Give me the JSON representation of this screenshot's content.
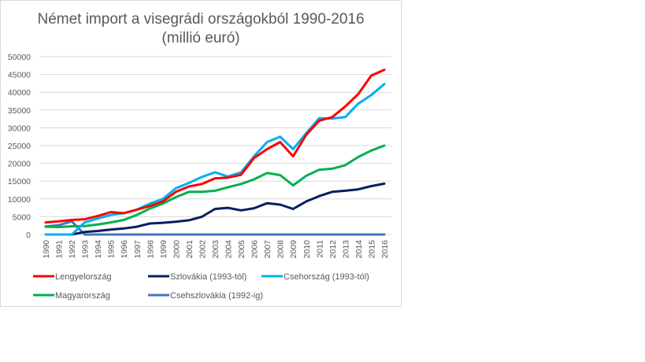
{
  "chart_data": {
    "type": "line",
    "title": "Német import a visegrádi országokból 1990-2016",
    "subtitle": "(millió euró)",
    "xlabel": "",
    "ylabel": "",
    "ylim": [
      0,
      50000
    ],
    "yticks": [
      "0",
      "5000",
      "10000",
      "15000",
      "20000",
      "25000",
      "30000",
      "35000",
      "40000",
      "45000",
      "50000"
    ],
    "ytick_values": [
      0,
      5000,
      10000,
      15000,
      20000,
      25000,
      30000,
      35000,
      40000,
      45000,
      50000
    ],
    "grid": true,
    "legend_position": "bottom",
    "x": [
      "1990",
      "1991",
      "1992",
      "1993",
      "1994",
      "1995",
      "1996",
      "1997",
      "1998",
      "1999",
      "2000",
      "2001",
      "2002",
      "2003",
      "2004",
      "2005",
      "2006",
      "2007",
      "2008",
      "2009",
      "2010",
      "2011",
      "2012",
      "2013",
      "2014",
      "2015",
      "2016"
    ],
    "series": [
      {
        "name": "Lengyelország",
        "color": "#ff0000",
        "values": [
          3400,
          3700,
          4100,
          4300,
          5200,
          6300,
          6000,
          7000,
          8000,
          9300,
          12000,
          13500,
          14200,
          15800,
          16000,
          16800,
          21500,
          24000,
          26000,
          22000,
          28000,
          32000,
          33000,
          36000,
          39500,
          44700,
          46300
        ]
      },
      {
        "name": "Szlovákia (1993-tól)",
        "color": "#002060",
        "values": [
          null,
          null,
          0,
          700,
          1000,
          1400,
          1700,
          2200,
          3100,
          3300,
          3600,
          4000,
          5000,
          7200,
          7500,
          6800,
          7400,
          8800,
          8400,
          7200,
          9300,
          10800,
          12000,
          12300,
          12700,
          13600,
          14300
        ]
      },
      {
        "name": "Csehország (1993-tól)",
        "color": "#00b0f0",
        "values": [
          0,
          0,
          0,
          3400,
          4500,
          5500,
          6000,
          7000,
          8700,
          10000,
          13000,
          14500,
          16200,
          17500,
          16300,
          17500,
          22000,
          26000,
          27500,
          24000,
          28500,
          32700,
          32600,
          33000,
          36800,
          39200,
          42300
        ]
      },
      {
        "name": "Magyarország",
        "color": "#00b050",
        "values": [
          2200,
          2100,
          2300,
          2400,
          2800,
          3400,
          4100,
          5500,
          7300,
          8700,
          10500,
          12000,
          12000,
          12300,
          13300,
          14200,
          15500,
          17300,
          16700,
          13800,
          16500,
          18200,
          18500,
          19500,
          21800,
          23600,
          25000
        ]
      },
      {
        "name": "Csehszlovákia (1992-ig)",
        "color": "#4472c4",
        "values": [
          2300,
          2600,
          3700,
          0,
          0,
          0,
          0,
          0,
          0,
          0,
          0,
          0,
          0,
          0,
          0,
          0,
          0,
          0,
          0,
          0,
          0,
          0,
          0,
          0,
          0,
          0,
          0
        ]
      }
    ]
  }
}
